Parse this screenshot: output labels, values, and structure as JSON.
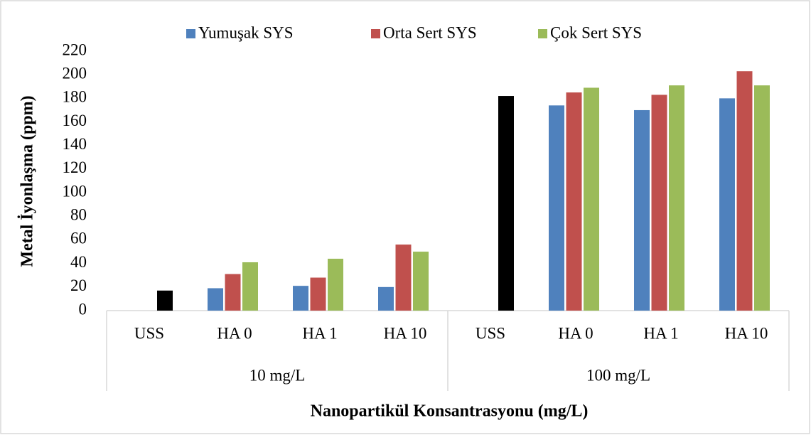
{
  "chart_data": {
    "type": "bar",
    "y_label": "Metal İyonlaşma (ppm)",
    "x_label": "Nanopartikül Konsantrasyonu (mg/L)",
    "groups": [
      {
        "name": "10 mg/L",
        "categories": [
          "USS",
          "HA 0",
          "HA 1",
          "HA 10"
        ]
      },
      {
        "name": "100 mg/L",
        "categories": [
          "USS",
          "HA 0",
          "HA 1",
          "HA 10"
        ]
      }
    ],
    "series": [
      {
        "name": "Yumuşak SYS",
        "color": "#4f81bd",
        "values": [
          null,
          19,
          21,
          20,
          null,
          174,
          170,
          180
        ]
      },
      {
        "name": "Orta Sert SYS",
        "color": "#c0504d",
        "values": [
          null,
          31,
          28,
          56,
          null,
          185,
          183,
          203
        ]
      },
      {
        "name": "Çok Sert SYS",
        "color": "#9bbb59",
        "values": [
          17,
          41,
          44,
          50,
          182,
          189,
          191,
          191
        ],
        "point_colors": [
          "#000000",
          null,
          null,
          null,
          "#000000",
          null,
          null,
          null
        ]
      }
    ],
    "ylim": [
      0,
      220
    ],
    "yticks": [
      0,
      20,
      40,
      60,
      80,
      100,
      120,
      140,
      160,
      180,
      200,
      220
    ],
    "grid": false,
    "legend": "top"
  }
}
